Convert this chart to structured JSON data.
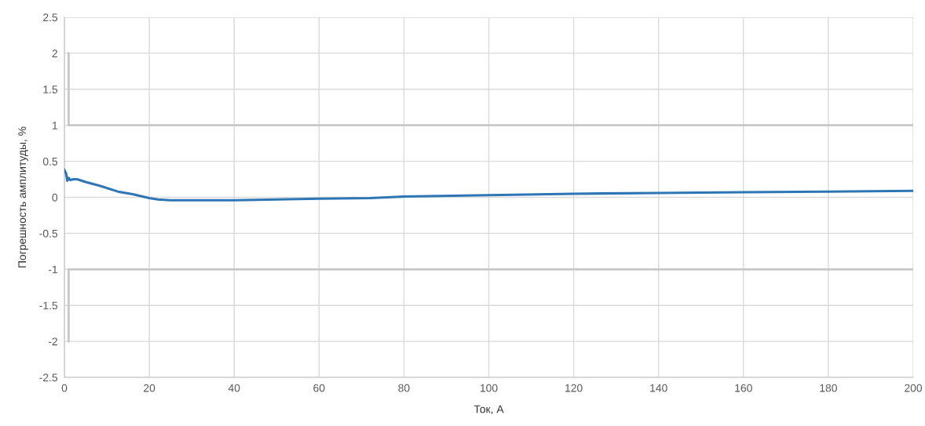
{
  "chart_data": {
    "type": "line",
    "xlabel": "Ток, А",
    "ylabel": "Погрешность амплитуды, %",
    "xlim": [
      0,
      200
    ],
    "xticks": [
      0,
      20,
      40,
      60,
      80,
      100,
      120,
      140,
      160,
      180,
      200
    ],
    "ylim": [
      -2.5,
      2.5
    ],
    "yticks": [
      -2.5,
      -2,
      -1.5,
      -1,
      -0.5,
      0,
      0.5,
      1,
      1.5,
      2,
      2.5
    ],
    "grid": true,
    "marker": "none",
    "line_style": "solid",
    "series": [
      {
        "color": "#2e75b6",
        "x": [
          0,
          0.4,
          0.7,
          1.0,
          1.4,
          2.1,
          3.0,
          5.2,
          8.3,
          12.6,
          16.3,
          20,
          22,
          25,
          30,
          40,
          50,
          60,
          72,
          80,
          100,
          120,
          140,
          160,
          180,
          200
        ],
        "values": [
          0.38,
          0.33,
          0.23,
          0.27,
          0.24,
          0.25,
          0.25,
          0.21,
          0.16,
          0.08,
          0.04,
          -0.01,
          -0.03,
          -0.04,
          -0.04,
          -0.04,
          -0.03,
          -0.02,
          -0.01,
          0.01,
          0.03,
          0.05,
          0.06,
          0.07,
          0.08,
          0.09
        ]
      },
      {
        "color": "#c8c8c8",
        "x": [
          1,
          1,
          200
        ],
        "values": [
          2,
          1,
          1
        ]
      },
      {
        "color": "#c8c8c8",
        "x": [
          1,
          1,
          200
        ],
        "values": [
          -2,
          -1,
          -1
        ]
      }
    ]
  }
}
